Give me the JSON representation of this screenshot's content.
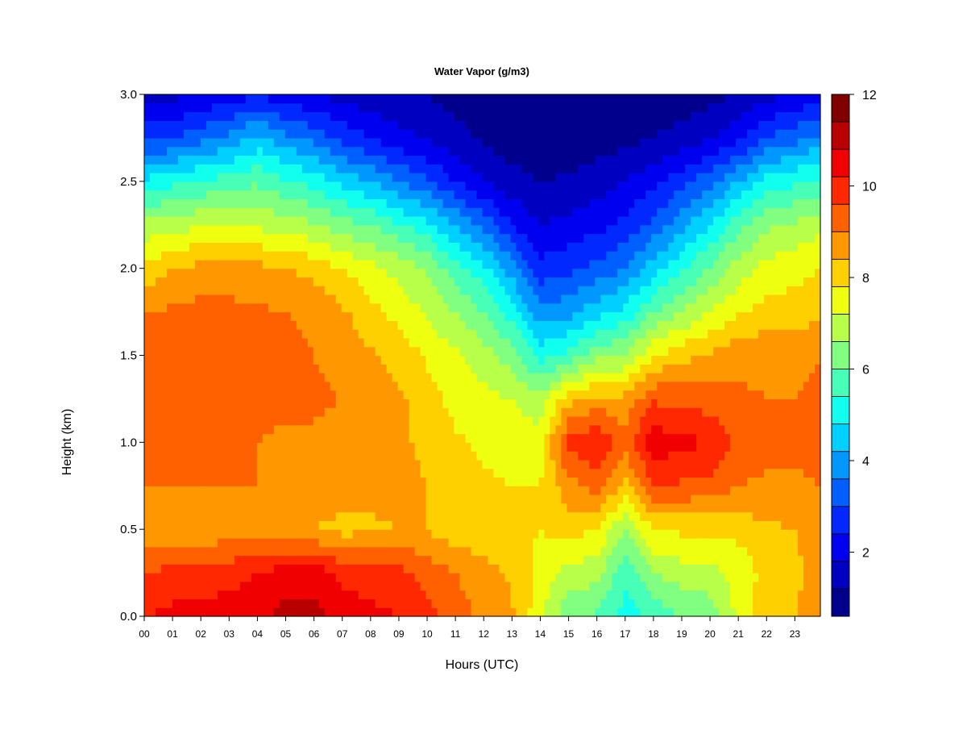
{
  "chart_data": {
    "type": "heatmap",
    "title": "Water Vapor (g/m3)",
    "xlabel": "Hours (UTC)",
    "ylabel": "Height (km)",
    "xlim": [
      0,
      23.9
    ],
    "ylim": [
      0,
      3.0
    ],
    "x_ticks": [
      "00",
      "01",
      "02",
      "03",
      "04",
      "05",
      "06",
      "07",
      "08",
      "09",
      "10",
      "11",
      "12",
      "13",
      "14",
      "15",
      "16",
      "17",
      "18",
      "19",
      "20",
      "21",
      "22",
      "23"
    ],
    "y_ticks": [
      "0.0",
      "0.5",
      "1.0",
      "1.5",
      "2.0",
      "2.5",
      "3.0"
    ],
    "x": [
      0,
      1,
      2,
      3,
      4,
      5,
      6,
      7,
      8,
      9,
      10,
      11,
      12,
      13,
      14,
      15,
      16,
      17,
      18,
      19,
      20,
      21,
      22,
      23,
      23.9
    ],
    "y": [
      0.0,
      0.25,
      0.5,
      0.75,
      1.0,
      1.25,
      1.5,
      1.75,
      2.0,
      2.25,
      2.5,
      2.75,
      3.0
    ],
    "z": [
      [
        10.2,
        10.4,
        10.4,
        10.5,
        10.6,
        11.0,
        11.0,
        10.6,
        10.4,
        10.2,
        9.8,
        9.3,
        8.8,
        8.5,
        7.4,
        6.1,
        5.9,
        5.1,
        5.6,
        6.0,
        6.2,
        7.4,
        8.2,
        8.4,
        9.0
      ],
      [
        9.6,
        9.8,
        9.8,
        10.0,
        10.2,
        10.5,
        10.6,
        10.0,
        9.8,
        9.8,
        9.4,
        9.0,
        8.7,
        8.3,
        7.6,
        7.0,
        6.8,
        5.6,
        6.6,
        6.9,
        7.0,
        7.4,
        8.0,
        8.2,
        8.8
      ],
      [
        8.6,
        8.6,
        8.6,
        8.6,
        8.6,
        8.4,
        8.4,
        8.2,
        8.3,
        8.4,
        8.4,
        8.0,
        7.9,
        7.9,
        7.8,
        8.0,
        7.8,
        6.6,
        7.8,
        7.9,
        7.9,
        8.0,
        8.3,
        8.4,
        8.7
      ],
      [
        9.0,
        9.0,
        9.0,
        9.0,
        9.0,
        8.9,
        8.9,
        8.7,
        8.6,
        8.6,
        8.4,
        8.0,
        7.9,
        7.8,
        7.8,
        8.8,
        9.2,
        8.2,
        9.6,
        9.5,
        9.4,
        9.0,
        8.9,
        8.9,
        9.0
      ],
      [
        9.2,
        9.2,
        9.2,
        9.2,
        9.0,
        8.9,
        8.9,
        8.8,
        8.6,
        8.5,
        8.3,
        7.9,
        7.7,
        7.5,
        7.5,
        9.8,
        10.2,
        9.2,
        10.6,
        10.4,
        10.2,
        9.4,
        9.2,
        9.1,
        9.2
      ],
      [
        9.4,
        9.4,
        9.4,
        9.3,
        9.2,
        9.1,
        9.1,
        9.0,
        8.7,
        8.5,
        8.1,
        7.6,
        7.4,
        7.2,
        6.8,
        8.2,
        8.6,
        8.6,
        9.5,
        9.4,
        9.3,
        9.1,
        9.0,
        9.0,
        9.1
      ],
      [
        9.2,
        9.2,
        9.3,
        9.3,
        9.2,
        9.1,
        9.0,
        8.8,
        8.5,
        8.2,
        7.7,
        7.3,
        6.9,
        6.3,
        5.2,
        5.6,
        6.4,
        6.6,
        7.8,
        8.2,
        8.5,
        8.8,
        8.9,
        8.9,
        9.0
      ],
      [
        9.0,
        9.1,
        9.2,
        9.2,
        9.1,
        9.0,
        8.9,
        8.5,
        8.0,
        7.6,
        7.1,
        6.6,
        6.0,
        5.1,
        3.8,
        4.0,
        4.6,
        5.0,
        6.0,
        6.6,
        7.2,
        7.7,
        8.0,
        8.1,
        8.2
      ],
      [
        7.9,
        8.4,
        8.6,
        8.6,
        8.6,
        8.4,
        8.2,
        7.8,
        7.4,
        7.0,
        6.5,
        5.7,
        5.0,
        3.9,
        2.6,
        2.8,
        3.2,
        3.6,
        4.5,
        5.3,
        6.1,
        6.9,
        7.4,
        7.6,
        7.8
      ],
      [
        6.8,
        7.0,
        7.1,
        7.2,
        7.1,
        6.9,
        6.7,
        6.3,
        6.0,
        5.5,
        5.0,
        4.2,
        3.4,
        2.4,
        1.8,
        2.0,
        2.2,
        2.6,
        3.2,
        4.0,
        4.8,
        5.8,
        6.5,
        6.7,
        7.0
      ],
      [
        5.0,
        5.2,
        5.5,
        5.7,
        5.9,
        5.5,
        5.2,
        4.6,
        4.2,
        3.6,
        3.1,
        2.4,
        1.8,
        1.4,
        1.2,
        1.3,
        1.5,
        1.8,
        2.2,
        2.8,
        3.4,
        4.2,
        5.0,
        5.3,
        5.6
      ],
      [
        2.8,
        3.0,
        3.4,
        3.8,
        4.4,
        3.8,
        3.4,
        2.8,
        2.4,
        2.0,
        1.7,
        1.4,
        1.1,
        0.9,
        0.8,
        0.8,
        0.9,
        1.0,
        1.2,
        1.4,
        1.7,
        2.2,
        3.0,
        3.4,
        3.8
      ],
      [
        1.5,
        1.6,
        1.8,
        2.0,
        2.3,
        2.0,
        1.8,
        1.6,
        1.4,
        1.3,
        1.2,
        1.0,
        0.8,
        0.7,
        0.6,
        0.6,
        0.6,
        0.7,
        0.8,
        0.9,
        1.0,
        1.2,
        1.6,
        1.8,
        2.2
      ]
    ],
    "colorbar": {
      "min": 0.6,
      "max": 12,
      "levels": 19,
      "ticks": [
        "2",
        "4",
        "6",
        "8",
        "10",
        "12"
      ],
      "colors": [
        "#00008c",
        "#0000c0",
        "#0000f0",
        "#0028ff",
        "#0060ff",
        "#0098ff",
        "#00d0ff",
        "#10ffef",
        "#48ffb7",
        "#80ff80",
        "#b7ff48",
        "#efff10",
        "#ffd000",
        "#ff9800",
        "#ff6000",
        "#ff2800",
        "#f00000",
        "#b80000",
        "#800000"
      ]
    },
    "grid": false,
    "legend": "colorbar-right"
  }
}
